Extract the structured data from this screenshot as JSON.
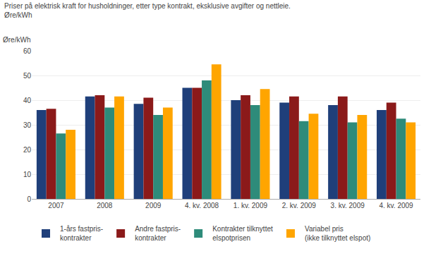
{
  "chart_data": {
    "type": "bar",
    "title": "Priser på elektrisk kraft for husholdninger, etter type kontrakt, eksklusive avgifter og nettleie.",
    "subtitle": "Øre/kWh",
    "y_label": "Øre/kWh",
    "categories": [
      "2007",
      "2008",
      "2009",
      "4. kv. 2008",
      "1. kv. 2009",
      "2. kv. 2009",
      "3. kv. 2009",
      "4. kv. 2009"
    ],
    "series": [
      {
        "name": "1-års fastpris-\nkontrakter",
        "color": "#1F3F7A",
        "values": [
          36,
          41.5,
          38.5,
          45,
          40,
          39,
          38,
          36
        ]
      },
      {
        "name": "Andre fastpris-\nkontrakter",
        "color": "#8B1A1A",
        "values": [
          36.5,
          42,
          41,
          45,
          42,
          41.5,
          41.5,
          39
        ]
      },
      {
        "name": "Kontrakter tilknyttet\nelspotprisen",
        "color": "#2E8B7A",
        "values": [
          26.5,
          37,
          34,
          48,
          38,
          31.5,
          31,
          32.5
        ]
      },
      {
        "name": "Variabel pris\n(ikke tilknyttet elspot)",
        "color": "#FFA500",
        "values": [
          28,
          41.5,
          37,
          54.5,
          44.5,
          34.5,
          34,
          31
        ]
      }
    ],
    "ylim": [
      0,
      60
    ],
    "yticks": [
      0,
      10,
      20,
      30,
      40,
      50,
      60
    ],
    "grid": true,
    "legend": "bottom"
  }
}
